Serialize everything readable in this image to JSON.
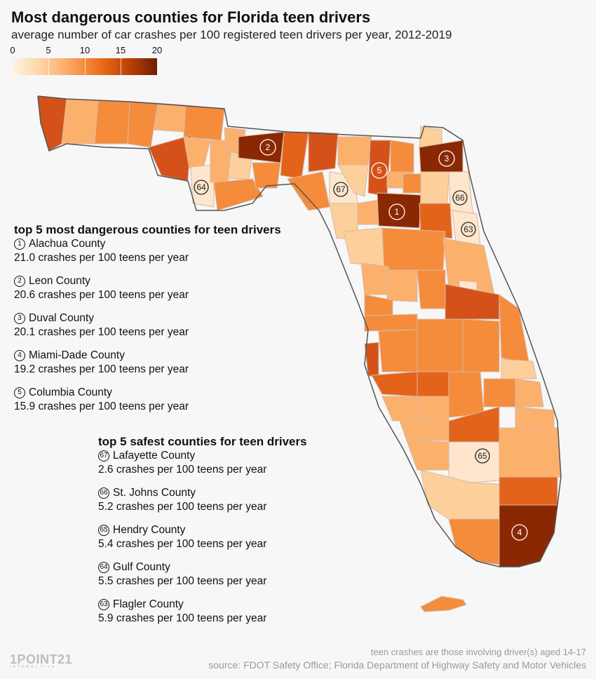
{
  "title": "Most dangerous counties for Florida teen drivers",
  "subtitle": "average number of car crashes per 100 registered teen drivers per year, 2012-2019",
  "legend": {
    "ticks": [
      "0",
      "5",
      "10",
      "15",
      "20"
    ],
    "min": 0,
    "max": 20
  },
  "colors": {
    "scale": [
      "#fde6cd",
      "#fdcf9b",
      "#fbb06c",
      "#f48c3b",
      "#e3631a",
      "#c44106",
      "#8a2804"
    ],
    "background": "#f7f7f7",
    "safe": "#fde6cd"
  },
  "dangerous": {
    "heading": "top 5 most dangerous counties for teen drivers",
    "items": [
      {
        "rank": "1",
        "name": "Alachua County",
        "rate": "21.0 crashes per 100 teens per year"
      },
      {
        "rank": "2",
        "name": "Leon County",
        "rate": "20.6 crashes per 100 teens per year"
      },
      {
        "rank": "3",
        "name": "Duval County",
        "rate": "20.1 crashes per 100 teens per year"
      },
      {
        "rank": "4",
        "name": "Miami-Dade County",
        "rate": "19.2 crashes per 100 teens per year"
      },
      {
        "rank": "5",
        "name": "Columbia County",
        "rate": "15.9 crashes per 100 teens per year"
      }
    ]
  },
  "safest": {
    "heading": "top 5 safest counties for teen drivers",
    "items": [
      {
        "rank": "67",
        "name": "Lafayette County",
        "rate": "2.6 crashes per 100 teens per year"
      },
      {
        "rank": "66",
        "name": "St. Johns County",
        "rate": "5.2 crashes per 100 teens per year"
      },
      {
        "rank": "65",
        "name": "Hendry County",
        "rate": "5.4 crashes per 100 teens per year"
      },
      {
        "rank": "64",
        "name": "Gulf County",
        "rate": "5.5 crashes per 100 teens per year"
      },
      {
        "rank": "63",
        "name": "Flagler County",
        "rate": "5.9 crashes per 100 teens per year"
      }
    ]
  },
  "map_markers": [
    "1",
    "2",
    "3",
    "4",
    "5",
    "67",
    "66",
    "65",
    "64",
    "63"
  ],
  "footnote": "teen crashes are those involving driver(s) aged 14-17",
  "source": "source: FDOT Safety Office;  Florida Department of Highway Safety and Motor Vehicles",
  "logo": {
    "text": "1POINT21",
    "sub": "INTERACTIVE"
  }
}
